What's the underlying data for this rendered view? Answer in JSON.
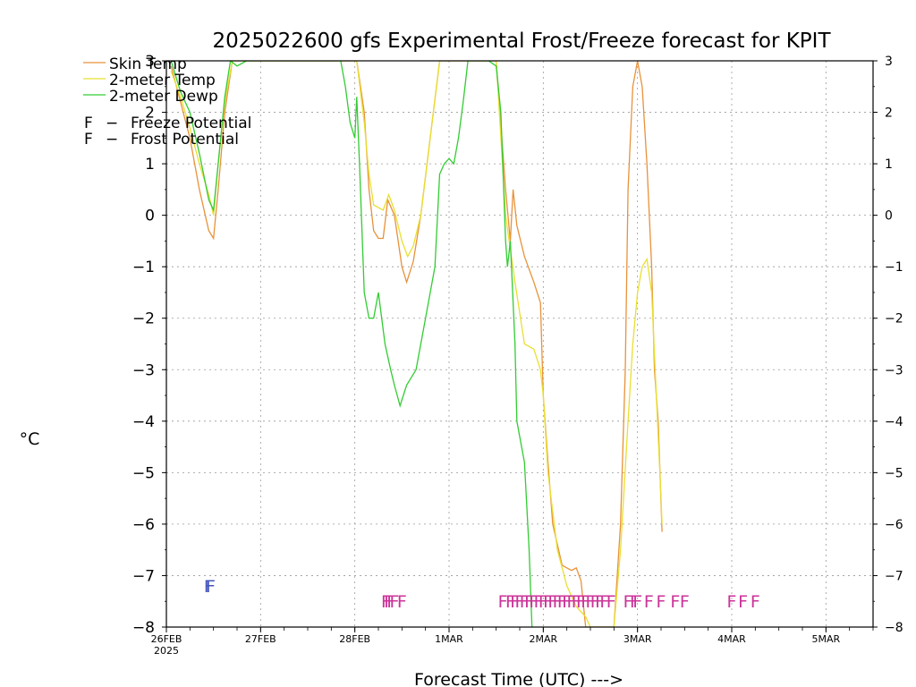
{
  "chart_data": {
    "type": "line",
    "title": "2025022600 gfs Experimental Frost/Freeze forecast for KPIT",
    "xlabel": "Forecast Time (UTC) --->",
    "ylabel": "°C",
    "xlim": [
      0,
      7.5
    ],
    "ylim": [
      -8,
      3
    ],
    "yticks": [
      -8,
      -7,
      -6,
      -5,
      -4,
      -3,
      -2,
      -1,
      0,
      1,
      2,
      3
    ],
    "xticks": [
      {
        "x": 0,
        "label": "26FEB",
        "sub": "2025"
      },
      {
        "x": 1,
        "label": "27FEB"
      },
      {
        "x": 2,
        "label": "28FEB"
      },
      {
        "x": 3,
        "label": "1MAR"
      },
      {
        "x": 4,
        "label": "2MAR"
      },
      {
        "x": 5,
        "label": "3MAR"
      },
      {
        "x": 6,
        "label": "4MAR"
      },
      {
        "x": 7,
        "label": "5MAR"
      }
    ],
    "grid": true,
    "legend_position": "top-left",
    "series": [
      {
        "name": "Skin Temp",
        "color": "#e8923a",
        "points": [
          [
            0.05,
            2.9
          ],
          [
            0.15,
            2.2
          ],
          [
            0.25,
            1.5
          ],
          [
            0.35,
            0.5
          ],
          [
            0.45,
            -0.3
          ],
          [
            0.5,
            -0.45
          ],
          [
            0.55,
            0.5
          ],
          [
            0.62,
            2.0
          ],
          [
            0.7,
            3.0
          ],
          [
            2.02,
            3.0
          ],
          [
            2.1,
            2.0
          ],
          [
            2.15,
            0.5
          ],
          [
            2.2,
            -0.3
          ],
          [
            2.25,
            -0.45
          ],
          [
            2.3,
            -0.45
          ],
          [
            2.35,
            0.3
          ],
          [
            2.42,
            0.0
          ],
          [
            2.5,
            -1.0
          ],
          [
            2.55,
            -1.3
          ],
          [
            2.62,
            -0.9
          ],
          [
            2.7,
            0.0
          ],
          [
            2.8,
            1.5
          ],
          [
            2.9,
            3.0
          ],
          [
            3.0,
            3.0
          ],
          [
            3.42,
            3.0
          ],
          [
            3.5,
            3.0
          ],
          [
            3.6,
            0.5
          ],
          [
            3.65,
            -0.5
          ],
          [
            3.68,
            0.5
          ],
          [
            3.72,
            -0.2
          ],
          [
            3.8,
            -0.8
          ],
          [
            3.9,
            -1.3
          ],
          [
            3.97,
            -1.7
          ],
          [
            4.0,
            -3.5
          ],
          [
            4.05,
            -4.8
          ],
          [
            4.1,
            -6.0
          ],
          [
            4.2,
            -6.8
          ],
          [
            4.3,
            -6.9
          ],
          [
            4.35,
            -6.85
          ],
          [
            4.4,
            -7.1
          ],
          [
            4.45,
            -8.0
          ],
          [
            4.5,
            -8.0
          ],
          [
            4.75,
            -8.0
          ],
          [
            4.82,
            -6.0
          ],
          [
            4.87,
            -3.0
          ],
          [
            4.9,
            0.5
          ],
          [
            4.95,
            2.5
          ],
          [
            5.0,
            3.0
          ],
          [
            5.05,
            2.5
          ],
          [
            5.1,
            1.0
          ],
          [
            5.15,
            -1.0
          ],
          [
            5.18,
            -3.0
          ],
          [
            5.22,
            -4.0
          ],
          [
            5.26,
            -6.15
          ]
        ]
      },
      {
        "name": "2-meter Temp",
        "color": "#e8e030",
        "points": [
          [
            0.05,
            2.8
          ],
          [
            0.15,
            2.3
          ],
          [
            0.25,
            1.7
          ],
          [
            0.35,
            1.0
          ],
          [
            0.45,
            0.4
          ],
          [
            0.5,
            0.0
          ],
          [
            0.55,
            1.0
          ],
          [
            0.62,
            2.2
          ],
          [
            0.7,
            3.0
          ],
          [
            2.02,
            3.0
          ],
          [
            2.1,
            1.8
          ],
          [
            2.15,
            0.8
          ],
          [
            2.2,
            0.2
          ],
          [
            2.3,
            0.1
          ],
          [
            2.36,
            0.4
          ],
          [
            2.42,
            0.1
          ],
          [
            2.5,
            -0.5
          ],
          [
            2.56,
            -0.8
          ],
          [
            2.62,
            -0.6
          ],
          [
            2.7,
            0.0
          ],
          [
            2.8,
            1.5
          ],
          [
            2.9,
            3.0
          ],
          [
            3.0,
            3.0
          ],
          [
            3.42,
            3.0
          ],
          [
            3.5,
            3.0
          ],
          [
            3.6,
            0.0
          ],
          [
            3.7,
            -1.3
          ],
          [
            3.8,
            -2.5
          ],
          [
            3.9,
            -2.6
          ],
          [
            3.97,
            -3.0
          ],
          [
            4.0,
            -3.5
          ],
          [
            4.05,
            -5.0
          ],
          [
            4.15,
            -6.5
          ],
          [
            4.25,
            -7.2
          ],
          [
            4.35,
            -7.6
          ],
          [
            4.45,
            -7.8
          ],
          [
            4.5,
            -8.0
          ],
          [
            4.75,
            -8.0
          ],
          [
            4.82,
            -6.5
          ],
          [
            4.9,
            -4.0
          ],
          [
            4.95,
            -2.5
          ],
          [
            5.0,
            -1.5
          ],
          [
            5.05,
            -1.0
          ],
          [
            5.1,
            -0.85
          ],
          [
            5.15,
            -1.5
          ],
          [
            5.2,
            -3.5
          ],
          [
            5.25,
            -5.5
          ],
          [
            5.26,
            -6.0
          ]
        ]
      },
      {
        "name": "2-meter Dewp",
        "color": "#33cc33",
        "points": [
          [
            0.05,
            3.0
          ],
          [
            0.15,
            2.4
          ],
          [
            0.25,
            2.0
          ],
          [
            0.35,
            1.2
          ],
          [
            0.45,
            0.3
          ],
          [
            0.5,
            0.1
          ],
          [
            0.55,
            1.0
          ],
          [
            0.62,
            2.3
          ],
          [
            0.68,
            3.0
          ],
          [
            0.75,
            2.9
          ],
          [
            0.85,
            3.0
          ],
          [
            1.0,
            3.0
          ],
          [
            1.85,
            3.0
          ],
          [
            1.9,
            2.5
          ],
          [
            1.95,
            1.8
          ],
          [
            2.0,
            1.5
          ],
          [
            2.02,
            2.3
          ],
          [
            2.05,
            1.0
          ],
          [
            2.1,
            -1.5
          ],
          [
            2.15,
            -2.0
          ],
          [
            2.2,
            -2.0
          ],
          [
            2.25,
            -1.5
          ],
          [
            2.32,
            -2.5
          ],
          [
            2.38,
            -3.0
          ],
          [
            2.42,
            -3.3
          ],
          [
            2.48,
            -3.7
          ],
          [
            2.55,
            -3.3
          ],
          [
            2.65,
            -3.0
          ],
          [
            2.75,
            -2.0
          ],
          [
            2.85,
            -1.0
          ],
          [
            2.9,
            0.8
          ],
          [
            2.95,
            1.0
          ],
          [
            3.0,
            1.1
          ],
          [
            3.05,
            1.0
          ],
          [
            3.1,
            1.5
          ],
          [
            3.15,
            2.2
          ],
          [
            3.2,
            3.0
          ],
          [
            3.42,
            3.0
          ],
          [
            3.5,
            2.9
          ],
          [
            3.55,
            2.0
          ],
          [
            3.6,
            -0.5
          ],
          [
            3.62,
            -1.0
          ],
          [
            3.65,
            -0.5
          ],
          [
            3.7,
            -2.5
          ],
          [
            3.72,
            -4.0
          ],
          [
            3.8,
            -4.8
          ],
          [
            3.85,
            -6.5
          ],
          [
            3.88,
            -8.0
          ]
        ]
      }
    ],
    "markers": [
      {
        "text": "F",
        "type": "Frost Potential",
        "positions": [
          0.45,
          0.47
        ]
      },
      {
        "text": "F",
        "type": "Freeze Potential",
        "positions": [
          2.33,
          2.36,
          2.39,
          2.42,
          2.5,
          3.57,
          3.65,
          3.7,
          3.75,
          3.8,
          3.85,
          3.9,
          3.95,
          4.0,
          4.05,
          4.1,
          4.15,
          4.2,
          4.25,
          4.3,
          4.35,
          4.4,
          4.45,
          4.5,
          4.55,
          4.6,
          4.65,
          4.72,
          4.9,
          4.97,
          5.0,
          5.12,
          5.25,
          5.4,
          5.5,
          6.0,
          6.12,
          6.25
        ]
      }
    ],
    "marker_colors": {
      "Freeze Potential": "#cc3399",
      "Frost Potential": "#4455bb"
    },
    "legend": [
      {
        "label": "Skin Temp",
        "color": "#e8923a"
      },
      {
        "label": "2-meter Temp",
        "color": "#e8e030"
      },
      {
        "label": "2-meter Dewp",
        "color": "#33cc33"
      }
    ],
    "legend_markers": [
      {
        "symbol": "F",
        "label": "Freeze Potential",
        "color": "#cc3399"
      },
      {
        "symbol": "F",
        "label": "Frost Potential",
        "color": "#4455bb"
      }
    ],
    "legend_dash": "−"
  }
}
